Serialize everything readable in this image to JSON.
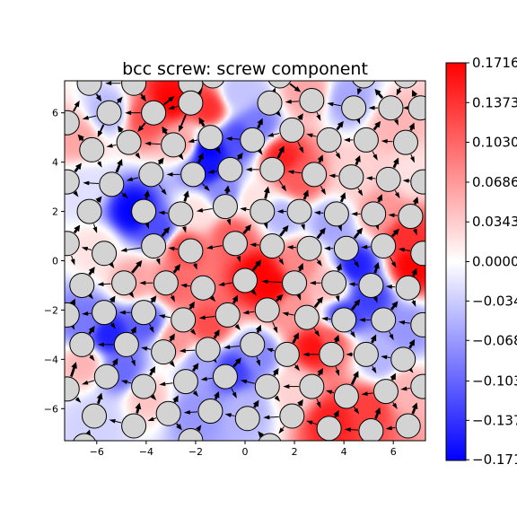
{
  "chart_data": {
    "type": "heatmap",
    "title": "bcc screw: screw component",
    "xlabel": "",
    "ylabel": "",
    "xlim": [
      -7.3,
      7.3
    ],
    "ylim": [
      -7.3,
      7.3
    ],
    "x_ticks": [
      -6,
      -4,
      -2,
      0,
      2,
      4,
      6
    ],
    "y_ticks": [
      -6,
      -4,
      -2,
      0,
      2,
      4,
      6
    ],
    "x_tick_labels": [
      "−6",
      "−4",
      "−2",
      "0",
      "2",
      "4",
      "6"
    ],
    "y_tick_labels": [
      "−6",
      "−4",
      "−2",
      "0",
      "2",
      "4",
      "6"
    ],
    "grid": false,
    "colormap": "bwr",
    "colors": {
      "low": "#0000ff",
      "mid": "#ffffff",
      "high": "#ff0000",
      "atom_fill": "#d3d3d3",
      "arrow": "#000000"
    },
    "colorbar": {
      "range": [
        -0.1716,
        0.1716
      ],
      "ticks": [
        0.1716,
        0.1373,
        0.103,
        0.0686,
        0.0343,
        0.0,
        -0.034,
        -0.068,
        -0.103,
        -0.137,
        -0.171
      ],
      "tick_labels": [
        "0.1716",
        "0.1373",
        "0.1030",
        "0.0686",
        "0.0343",
        "0.0000",
        "−0.034",
        "−0.068",
        "−0.103",
        "−0.137",
        "−0.171"
      ]
    },
    "field_samples": [
      [
        -3.0,
        6.5,
        0.17
      ],
      [
        -1.5,
        6.2,
        0.14
      ],
      [
        -4.0,
        5.8,
        0.12
      ],
      [
        -2.5,
        4.8,
        0.06
      ],
      [
        0.5,
        5.5,
        -0.09
      ],
      [
        -1.5,
        4.5,
        -0.17
      ],
      [
        -0.2,
        5.0,
        -0.12
      ],
      [
        2.5,
        6.8,
        0.06
      ],
      [
        1.5,
        4.2,
        0.15
      ],
      [
        2.2,
        3.3,
        0.11
      ],
      [
        4.5,
        3.5,
        0.03
      ],
      [
        6.0,
        5.5,
        0.05
      ],
      [
        -5.5,
        6.0,
        -0.05
      ],
      [
        -6.8,
        5.0,
        0.06
      ],
      [
        -4.5,
        2.0,
        -0.17
      ],
      [
        -3.5,
        1.3,
        -0.12
      ],
      [
        -1.5,
        3.8,
        -0.16
      ],
      [
        -0.8,
        2.8,
        -0.08
      ],
      [
        1.5,
        1.8,
        -0.05
      ],
      [
        0.3,
        2.5,
        0.02
      ],
      [
        -6.5,
        3.0,
        -0.02
      ],
      [
        -2.5,
        0.5,
        0.12
      ],
      [
        -4.5,
        -0.8,
        0.06
      ],
      [
        -6.0,
        0.5,
        0.02
      ],
      [
        0.5,
        -0.5,
        0.17
      ],
      [
        1.0,
        -1.0,
        0.17
      ],
      [
        -0.5,
        1.0,
        0.11
      ],
      [
        2.2,
        0.0,
        0.08
      ],
      [
        3.5,
        -1.0,
        0.05
      ],
      [
        4.5,
        -0.2,
        -0.15
      ],
      [
        5.0,
        -1.5,
        -0.13
      ],
      [
        4.0,
        -2.3,
        -0.14
      ],
      [
        6.8,
        -0.2,
        0.17
      ],
      [
        6.5,
        1.0,
        0.14
      ],
      [
        5.5,
        2.0,
        0.07
      ],
      [
        3.5,
        1.5,
        -0.06
      ],
      [
        6.5,
        -2.8,
        -0.07
      ],
      [
        2.0,
        -2.0,
        0.07
      ],
      [
        2.8,
        -3.5,
        0.16
      ],
      [
        3.5,
        -3.2,
        0.11
      ],
      [
        5.5,
        -4.0,
        -0.05
      ],
      [
        -5.5,
        -3.0,
        -0.15
      ],
      [
        -6.5,
        -2.5,
        -0.09
      ],
      [
        -4.0,
        -2.5,
        -0.11
      ],
      [
        -2.8,
        -3.2,
        0.07
      ],
      [
        -1.5,
        -2.6,
        0.12
      ],
      [
        -2.8,
        -1.0,
        0.1
      ],
      [
        -0.5,
        -4.5,
        -0.13
      ],
      [
        0.5,
        -3.8,
        -0.08
      ],
      [
        -1.8,
        -4.2,
        -0.06
      ],
      [
        -5.0,
        -4.5,
        -0.1
      ],
      [
        -6.5,
        -4.2,
        0.05
      ],
      [
        -4.0,
        -5.5,
        0.04
      ],
      [
        -2.0,
        -6.2,
        -0.07
      ],
      [
        0.0,
        -6.0,
        -0.05
      ],
      [
        2.0,
        -5.2,
        0.03
      ],
      [
        3.5,
        -6.5,
        0.15
      ],
      [
        5.0,
        -6.0,
        0.13
      ],
      [
        6.5,
        -5.2,
        0.05
      ],
      [
        -6.0,
        -6.5,
        -0.03
      ],
      [
        -0.3,
        6.8,
        -0.04
      ],
      [
        4.2,
        6.5,
        -0.06
      ],
      [
        6.8,
        3.5,
        0.02
      ],
      [
        -2.0,
        2.0,
        0.02
      ]
    ],
    "atoms": [
      [
        -6.3,
        7.2
      ],
      [
        -4.5,
        7.2
      ],
      [
        -2.2,
        7.2
      ],
      [
        -1.3,
        7.5
      ],
      [
        1.4,
        7.5
      ],
      [
        4.8,
        7.5
      ],
      [
        6.5,
        7.5
      ],
      [
        -7.2,
        5.6
      ],
      [
        -5.5,
        6.0
      ],
      [
        -3.7,
        6.0
      ],
      [
        -2.2,
        6.4
      ],
      [
        1.0,
        6.4
      ],
      [
        2.7,
        6.5
      ],
      [
        4.4,
        6.2
      ],
      [
        5.9,
        6.2
      ],
      [
        7.1,
        6.2
      ],
      [
        -6.2,
        4.5
      ],
      [
        -4.7,
        4.8
      ],
      [
        -2.9,
        4.7
      ],
      [
        -1.4,
        5.0
      ],
      [
        0.3,
        4.9
      ],
      [
        1.9,
        5.3
      ],
      [
        3.4,
        4.9
      ],
      [
        4.9,
        4.9
      ],
      [
        6.5,
        4.8
      ],
      [
        -7.2,
        3.2
      ],
      [
        -5.4,
        3.1
      ],
      [
        -3.8,
        3.5
      ],
      [
        -2.1,
        3.5
      ],
      [
        -0.6,
        3.7
      ],
      [
        1.1,
        3.7
      ],
      [
        2.8,
        3.5
      ],
      [
        4.3,
        3.4
      ],
      [
        5.8,
        3.3
      ],
      [
        7.2,
        3.2
      ],
      [
        -6.3,
        2.0
      ],
      [
        -4.1,
        2.0
      ],
      [
        -2.6,
        1.9
      ],
      [
        -0.8,
        2.2
      ],
      [
        0.7,
        2.0
      ],
      [
        2.2,
        2.0
      ],
      [
        3.7,
        1.9
      ],
      [
        5.2,
        1.9
      ],
      [
        6.7,
        1.8
      ],
      [
        -7.2,
        0.7
      ],
      [
        -5.7,
        0.3
      ],
      [
        -3.7,
        0.6
      ],
      [
        -2.2,
        0.4
      ],
      [
        -0.4,
        0.7
      ],
      [
        1.1,
        0.6
      ],
      [
        2.6,
        0.5
      ],
      [
        4.1,
        0.5
      ],
      [
        5.6,
        0.6
      ],
      [
        7.2,
        0.3
      ],
      [
        -6.6,
        -1.0
      ],
      [
        -4.9,
        -0.9
      ],
      [
        -3.2,
        -0.9
      ],
      [
        -1.7,
        -1.1
      ],
      [
        0.0,
        -0.8
      ],
      [
        2.0,
        -0.9
      ],
      [
        3.6,
        -0.9
      ],
      [
        5.1,
        -1.0
      ],
      [
        6.6,
        -1.1
      ],
      [
        -7.2,
        -2.2
      ],
      [
        -5.7,
        -2.1
      ],
      [
        -4.1,
        -2.1
      ],
      [
        -2.5,
        -2.4
      ],
      [
        -0.7,
        -2.2
      ],
      [
        0.9,
        -2.0
      ],
      [
        2.5,
        -2.3
      ],
      [
        4.0,
        -2.4
      ],
      [
        5.6,
        -2.4
      ],
      [
        7.2,
        -2.6
      ],
      [
        -6.6,
        -3.4
      ],
      [
        -4.8,
        -3.4
      ],
      [
        -3.3,
        -3.7
      ],
      [
        -1.5,
        -3.6
      ],
      [
        0.3,
        -3.4
      ],
      [
        1.7,
        -3.8
      ],
      [
        3.5,
        -3.8
      ],
      [
        4.9,
        -3.8
      ],
      [
        6.4,
        -4.0
      ],
      [
        -7.2,
        -5.2
      ],
      [
        -5.6,
        -4.7
      ],
      [
        -4.1,
        -5.1
      ],
      [
        -2.4,
        -4.9
      ],
      [
        -0.8,
        -4.7
      ],
      [
        0.9,
        -5.1
      ],
      [
        2.7,
        -5.1
      ],
      [
        4.1,
        -5.5
      ],
      [
        5.7,
        -5.3
      ],
      [
        7.2,
        -5.1
      ],
      [
        -6.1,
        -6.3
      ],
      [
        -4.5,
        -6.7
      ],
      [
        -3.1,
        -6.2
      ],
      [
        -1.4,
        -6.1
      ],
      [
        0.1,
        -6.4
      ],
      [
        1.9,
        -6.3
      ],
      [
        3.4,
        -6.8
      ],
      [
        5.1,
        -6.9
      ],
      [
        6.6,
        -6.7
      ],
      [
        -6.5,
        -7.5
      ],
      [
        -2.2,
        -7.3
      ],
      [
        1.0,
        -7.5
      ]
    ]
  }
}
